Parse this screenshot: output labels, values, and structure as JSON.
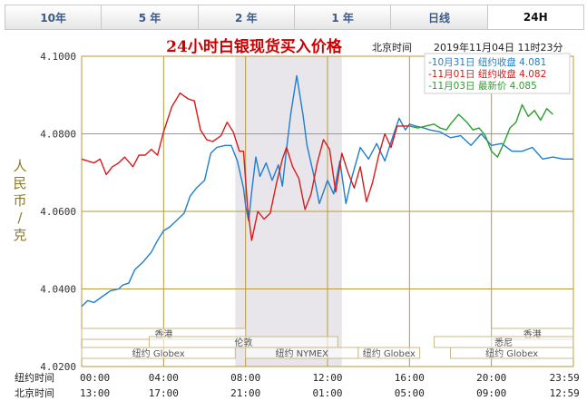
{
  "tabs": [
    {
      "label": "10年"
    },
    {
      "label": "5 年"
    },
    {
      "label": "2 年"
    },
    {
      "label": "1 年"
    },
    {
      "label": "日线"
    },
    {
      "label": "24H",
      "active": true
    }
  ],
  "header": {
    "title": "24小时白银现货买入价格",
    "timezone_label": "北京时间",
    "timestamp": "2019年11月04日 11时23分"
  },
  "colors": {
    "grid": "#b89a3a",
    "title": "#cc0000",
    "nymex_band": "#e8e6ea",
    "oct31": "#1e7fd0",
    "nov01": "#d81b1b",
    "nov03": "#2aa02a"
  },
  "chart_data": {
    "type": "line",
    "ylabel": "人民币/克",
    "ylim": [
      4.02,
      4.1
    ],
    "y_ticks": [
      "4.1000",
      "4.0800",
      "4.0600",
      "4.0400",
      "4.0200"
    ],
    "x_row1_label": "纽约时间",
    "x_row2_label": "北京时间",
    "x_ticks_ny": [
      "00:00",
      "04:00",
      "08:00",
      "12:00",
      "16:00",
      "20:00",
      "23:59"
    ],
    "x_ticks_bj": [
      "13:00",
      "17:00",
      "21:00",
      "01:00",
      "05:00",
      "09:00",
      "12:59"
    ],
    "highlight_range": [
      7.5,
      12.7
    ],
    "legend": [
      {
        "text": "-10月31日 纽约收盘 4.081",
        "series": 0
      },
      {
        "text": "-11月01日 纽约收盘 4.082",
        "series": 1
      },
      {
        "text": "-11月03日   最新价 4.085",
        "series": 2
      }
    ],
    "sessions": [
      {
        "label": "香港",
        "start": 0,
        "end": 8
      },
      {
        "label": "伦敦",
        "start": 3.3,
        "end": 12.5
      },
      {
        "label": "纽约 Globex",
        "start": 0,
        "end": 7.5
      },
      {
        "label": "纽约 NYMEX",
        "start": 8,
        "end": 13.5
      },
      {
        "label": "纽约 Globex",
        "start": 13.5,
        "end": 16.5
      },
      {
        "label": "香港",
        "start": 20,
        "end": 23.99
      },
      {
        "label": "悉尼",
        "start": 17.2,
        "end": 23.99
      },
      {
        "label": "纽约 Globex",
        "start": 18,
        "end": 23.99
      }
    ],
    "series": [
      {
        "x": [
          0,
          0.3,
          0.6,
          1,
          1.4,
          1.8,
          2,
          2.3,
          2.6,
          3,
          3.4,
          3.7,
          4,
          4.3,
          4.6,
          5,
          5.3,
          5.6,
          6,
          6.3,
          6.6,
          7,
          7.3,
          7.6,
          7.9,
          8,
          8.15,
          8.3,
          8.5,
          8.7,
          9,
          9.3,
          9.6,
          9.8,
          10,
          10.2,
          10.5,
          10.8,
          11,
          11.3,
          11.6,
          12,
          12.3,
          12.6,
          12.9,
          13.2,
          13.6,
          14,
          14.4,
          14.8,
          15.2,
          15.5,
          15.8,
          16,
          16.3,
          16.7,
          17,
          17.5,
          18,
          18.5,
          19,
          19.5,
          20,
          20.5,
          21,
          21.5,
          22,
          22.5,
          23,
          23.5,
          23.99
        ],
        "y": [
          4.0355,
          4.037,
          4.0365,
          4.038,
          4.0395,
          4.04,
          4.041,
          4.0415,
          4.045,
          4.047,
          4.0495,
          4.0525,
          4.055,
          4.056,
          4.0575,
          4.0595,
          4.064,
          4.066,
          4.068,
          4.075,
          4.0765,
          4.077,
          4.077,
          4.073,
          4.066,
          4.0615,
          4.0575,
          4.065,
          4.074,
          4.069,
          4.0725,
          4.068,
          4.072,
          4.0665,
          4.076,
          4.085,
          4.095,
          4.085,
          4.077,
          4.07,
          4.062,
          4.068,
          4.0645,
          4.073,
          4.062,
          4.069,
          4.0765,
          4.0735,
          4.0775,
          4.073,
          4.0795,
          4.084,
          4.081,
          4.0825,
          4.082,
          4.0815,
          4.081,
          4.0805,
          4.079,
          4.0795,
          4.077,
          4.08,
          4.077,
          4.0775,
          4.0755,
          4.0755,
          4.0765,
          4.0735,
          4.074,
          4.0735,
          4.0735
        ]
      },
      {
        "x": [
          0,
          0.3,
          0.6,
          0.9,
          1.2,
          1.5,
          1.8,
          2.1,
          2.5,
          2.8,
          3.1,
          3.4,
          3.7,
          4,
          4.4,
          4.8,
          5.2,
          5.5,
          5.8,
          6.1,
          6.4,
          6.8,
          7.1,
          7.4,
          7.7,
          7.9,
          8.1,
          8.3,
          8.6,
          8.9,
          9.2,
          9.5,
          9.8,
          10,
          10.3,
          10.6,
          10.9,
          11.2,
          11.5,
          11.8,
          12.1,
          12.4,
          12.7,
          13,
          13.3,
          13.6,
          13.9,
          14.2,
          14.5,
          14.8,
          15.1,
          15.4,
          15.7,
          16
        ],
        "y": [
          4.0735,
          4.073,
          4.0725,
          4.0735,
          4.0695,
          4.0715,
          4.0725,
          4.074,
          4.0715,
          4.0745,
          4.0745,
          4.076,
          4.0745,
          4.0805,
          4.087,
          4.0905,
          4.089,
          4.0885,
          4.081,
          4.0785,
          4.078,
          4.0795,
          4.083,
          4.0805,
          4.0755,
          4.0755,
          4.061,
          4.0525,
          4.06,
          4.058,
          4.0595,
          4.067,
          4.0735,
          4.0765,
          4.0715,
          4.0685,
          4.0605,
          4.0645,
          4.0725,
          4.0785,
          4.076,
          4.065,
          4.075,
          4.07,
          4.066,
          4.0715,
          4.0625,
          4.0675,
          4.0745,
          4.08,
          4.0765,
          4.082,
          4.082,
          4.082
        ]
      },
      {
        "x": [
          16,
          16.4,
          16.8,
          17.2,
          17.5,
          17.8,
          18,
          18.4,
          18.8,
          19.1,
          19.4,
          19.7,
          20,
          20.3,
          20.6,
          20.9,
          21.2,
          21.5,
          21.8,
          22.1,
          22.4,
          22.7,
          23
        ],
        "y": [
          4.082,
          4.0815,
          4.082,
          4.0825,
          4.0815,
          4.081,
          4.0825,
          4.085,
          4.083,
          4.081,
          4.0815,
          4.0795,
          4.0755,
          4.074,
          4.0775,
          4.0815,
          4.083,
          4.0875,
          4.0845,
          4.086,
          4.0835,
          4.0865,
          4.085
        ]
      }
    ]
  }
}
